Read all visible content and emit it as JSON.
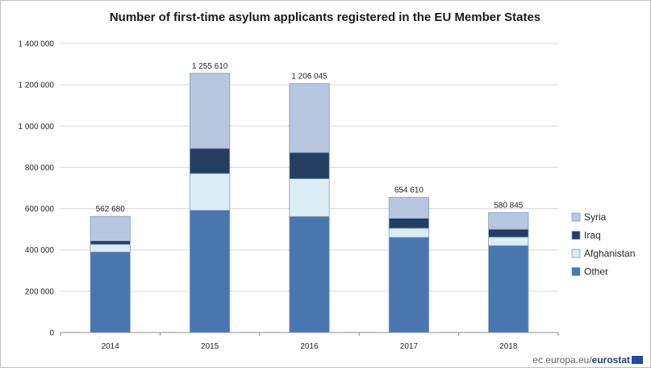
{
  "chart_data": {
    "type": "bar",
    "stacked": true,
    "title": "Number of first-time asylum applicants registered in the EU Member States",
    "categories": [
      "2014",
      "2015",
      "2016",
      "2017",
      "2018"
    ],
    "series": [
      {
        "name": "Other",
        "color": "#4a76b0",
        "values": [
          390000,
          592000,
          562000,
          461000,
          421000
        ]
      },
      {
        "name": "Afghanistan",
        "color": "#dbeef4",
        "values": [
          37000,
          178000,
          183000,
          44000,
          41000
        ]
      },
      {
        "name": "Iraq",
        "color": "#243e60",
        "values": [
          17000,
          122000,
          127000,
          48000,
          38000
        ]
      },
      {
        "name": "Syria",
        "color": "#b8c7e0",
        "values": [
          118680,
          363610,
          334045,
          101610,
          80845
        ]
      }
    ],
    "totals": [
      "562 680",
      "1 255 610",
      "1 206 045",
      "654 610",
      "580 845"
    ],
    "y_ticks": [
      "0",
      "200 000",
      "400 000",
      "600 000",
      "800 000",
      "1 000 000",
      "1 200 000",
      "1 400 000"
    ],
    "ylim": [
      0,
      1400000
    ],
    "grid": true,
    "legend": "right"
  },
  "source": {
    "prefix": "ec.europa.eu/",
    "brand": "eurostat"
  }
}
